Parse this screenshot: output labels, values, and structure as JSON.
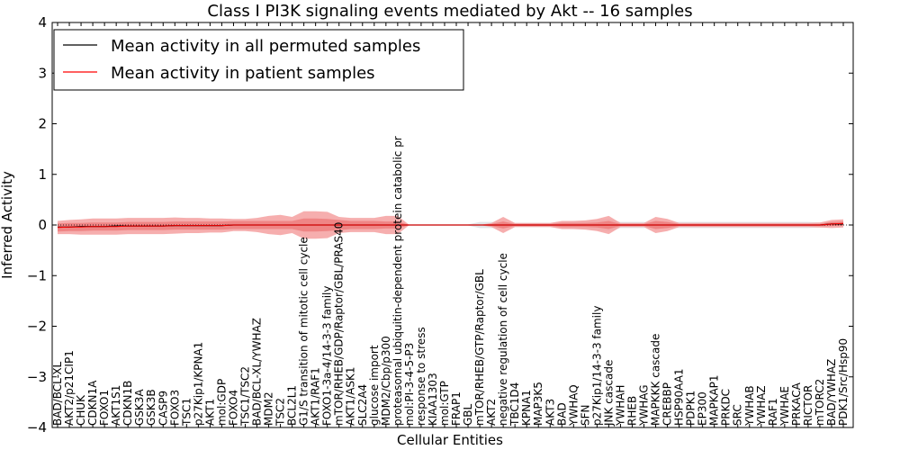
{
  "chart_data": {
    "type": "line",
    "title": "Class I PI3K signaling events mediated by Akt -- 16 samples",
    "xlabel": "Cellular Entities",
    "ylabel": "Inferred Activity",
    "ylim": [
      -4,
      4
    ],
    "yticks": [
      -4,
      -3,
      -2,
      -1,
      0,
      1,
      2,
      3,
      4
    ],
    "ytick_labels": [
      "−4",
      "−3",
      "−2",
      "−1",
      "0",
      "1",
      "2",
      "3",
      "4"
    ],
    "legend": {
      "location": "top-left",
      "entries": [
        {
          "label": "Mean activity in all permuted samples",
          "color": "#000000"
        },
        {
          "label": "Mean activity in patient samples",
          "color": "#ff0000"
        }
      ]
    },
    "categories": [
      "BAD/BCL-XL",
      "AKT2/p21CIP1",
      "CHUK",
      "CDKN1A",
      "FOXO1",
      "AKT1S1",
      "CDKN1B",
      "GSK3A",
      "GSK3B",
      "CASP9",
      "FOXO3",
      "TSC1",
      "p27Kip1/KPNA1",
      "AKT1",
      "mol:GDP",
      "FOXO4",
      "TSC1/TSC2",
      "BAD/BCL-XL/YWHAZ",
      "MDM2",
      "TSC2",
      "BCL2L1",
      "G1/S transition of mitotic cell cycle",
      "AKT1/RAF1",
      "FOXO1-3a-4/14-3-3 family",
      "mTOR/RHEB/GDP/Raptor/GBL/PRAS40",
      "AKT1/ASK1",
      "SLC2A4",
      "glucose import",
      "MDM2/Cbp/p300",
      "proteasomal ubiquitin-dependent protein catabolic pr",
      "mol:PI-3-4-5-P3",
      "response to stress",
      "KIAA1303",
      "mol:GTP",
      "FRAP1",
      "GBL",
      "mTOR/RHEB/GTP/Raptor/GBL",
      "AKT2",
      "negative regulation of cell cycle",
      "TBC1D4",
      "KPNA1",
      "MAP3K5",
      "AKT3",
      "BAD",
      "YWHAQ",
      "SFN",
      "p27Kip1/14-3-3 family",
      "JNK cascade",
      "YWHAH",
      "RHEB",
      "YWHAG",
      "MAPKKK cascade",
      "CREBBP",
      "HSP90AA1",
      "PDPK1",
      "EP300",
      "MAPKAP1",
      "PRKDC",
      "SRC",
      "YWHAB",
      "YWHAZ",
      "RAF1",
      "YWHAE",
      "PRKACA",
      "RICTOR",
      "mTORC2",
      "BAD/YWHAZ",
      "PDK1/Src/Hsp90"
    ],
    "series": [
      {
        "name": "Mean activity in patient samples",
        "color": "#ff0000",
        "values": [
          -0.05,
          -0.04,
          -0.04,
          -0.03,
          -0.03,
          -0.03,
          -0.02,
          -0.02,
          -0.02,
          -0.02,
          -0.01,
          -0.01,
          -0.01,
          -0.01,
          -0.01,
          0.0,
          0.0,
          0.0,
          0.0,
          0.0,
          0.0,
          0.0,
          0.0,
          0.0,
          0.0,
          0.0,
          0.0,
          0.0,
          0.0,
          0.0,
          0.0,
          0.0,
          0.0,
          0.0,
          0.0,
          0.0,
          0.0,
          0.0,
          0.0,
          0.0,
          0.0,
          0.0,
          0.0,
          0.0,
          0.0,
          0.0,
          0.0,
          0.0,
          0.0,
          0.0,
          0.0,
          0.0,
          0.0,
          0.0,
          0.0,
          0.0,
          0.0,
          0.0,
          0.0,
          0.0,
          0.0,
          0.0,
          0.0,
          0.0,
          0.0,
          0.0,
          0.02,
          0.03
        ],
        "band_inner": [
          0.08,
          0.08,
          0.08,
          0.08,
          0.08,
          0.08,
          0.08,
          0.08,
          0.08,
          0.08,
          0.08,
          0.08,
          0.08,
          0.08,
          0.08,
          0.08,
          0.08,
          0.08,
          0.08,
          0.08,
          0.08,
          0.13,
          0.13,
          0.12,
          0.1,
          0.08,
          0.08,
          0.08,
          0.07,
          0.07,
          0.0,
          0.0,
          0.0,
          0.0,
          0.0,
          0.0,
          0.0,
          0.02,
          0.07,
          0.02,
          0.02,
          0.02,
          0.02,
          0.04,
          0.04,
          0.04,
          0.05,
          0.08,
          0.02,
          0.02,
          0.02,
          0.08,
          0.06,
          0.02,
          0.02,
          0.02,
          0.02,
          0.02,
          0.02,
          0.02,
          0.02,
          0.02,
          0.02,
          0.02,
          0.02,
          0.02,
          0.04,
          0.04
        ],
        "band_outer": [
          0.13,
          0.14,
          0.15,
          0.16,
          0.16,
          0.16,
          0.16,
          0.16,
          0.16,
          0.16,
          0.16,
          0.15,
          0.15,
          0.14,
          0.14,
          0.12,
          0.12,
          0.14,
          0.18,
          0.2,
          0.16,
          0.27,
          0.27,
          0.26,
          0.16,
          0.14,
          0.14,
          0.14,
          0.18,
          0.18,
          0.0,
          0.0,
          0.0,
          0.0,
          0.0,
          0.0,
          0.0,
          0.04,
          0.16,
          0.04,
          0.04,
          0.04,
          0.04,
          0.08,
          0.08,
          0.09,
          0.12,
          0.18,
          0.04,
          0.04,
          0.04,
          0.16,
          0.12,
          0.04,
          0.04,
          0.04,
          0.04,
          0.04,
          0.04,
          0.04,
          0.04,
          0.04,
          0.04,
          0.04,
          0.04,
          0.05,
          0.08,
          0.08
        ]
      },
      {
        "name": "Mean activity in all permuted samples",
        "color": "#000000",
        "values": [
          -0.04,
          -0.04,
          -0.03,
          -0.03,
          -0.03,
          -0.02,
          -0.02,
          -0.02,
          -0.02,
          -0.02,
          -0.01,
          -0.01,
          -0.01,
          -0.01,
          -0.01,
          0.0,
          0.0,
          0.0,
          0.0,
          0.0,
          0.0,
          0.0,
          0.0,
          0.0,
          0.0,
          0.0,
          0.0,
          0.0,
          0.0,
          0.0,
          0.0,
          0.0,
          0.0,
          0.0,
          0.0,
          0.0,
          0.0,
          0.0,
          0.0,
          0.0,
          0.0,
          0.0,
          0.0,
          0.0,
          0.0,
          0.0,
          0.0,
          0.0,
          0.0,
          0.0,
          0.0,
          0.0,
          0.0,
          0.0,
          0.0,
          0.0,
          0.0,
          0.0,
          0.0,
          0.0,
          0.0,
          0.0,
          0.0,
          0.0,
          0.0,
          0.0,
          0.02,
          0.02
        ],
        "band": [
          0.01,
          0.01,
          0.01,
          0.01,
          0.01,
          0.01,
          0.01,
          0.01,
          0.01,
          0.01,
          0.01,
          0.01,
          0.01,
          0.01,
          0.01,
          0.01,
          0.01,
          0.01,
          0.01,
          0.01,
          0.01,
          0.01,
          0.01,
          0.01,
          0.01,
          0.01,
          0.01,
          0.01,
          0.01,
          0.01,
          0.01,
          0.01,
          0.01,
          0.01,
          0.01,
          0.01,
          0.06,
          0.06,
          0.06,
          0.04,
          0.04,
          0.04,
          0.04,
          0.06,
          0.08,
          0.08,
          0.1,
          0.12,
          0.06,
          0.06,
          0.06,
          0.04,
          0.06,
          0.06,
          0.06,
          0.06,
          0.06,
          0.06,
          0.06,
          0.06,
          0.06,
          0.06,
          0.06,
          0.06,
          0.06,
          0.05,
          0.04,
          0.03
        ]
      }
    ],
    "band_colors": {
      "patient_outer": "#f4a0a0",
      "patient_inner": "#ee7b7b",
      "permuted": "#e3e3e6"
    }
  }
}
